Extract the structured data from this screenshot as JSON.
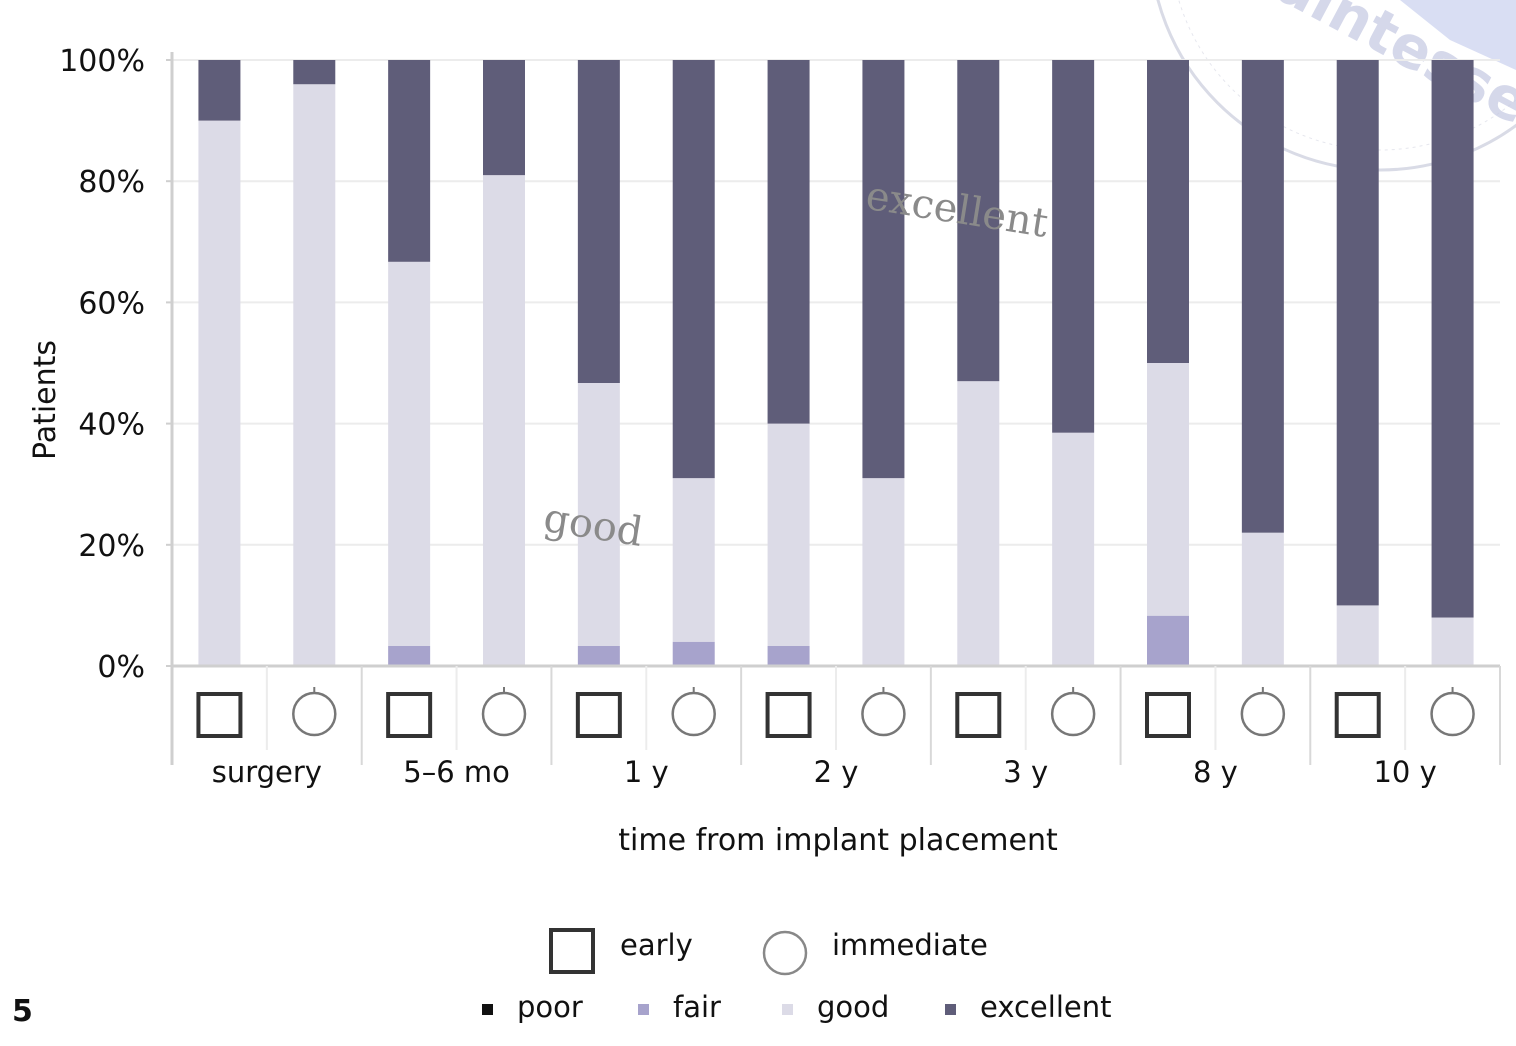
{
  "figure_number": "5",
  "watermark": "Quintessenz",
  "colors": {
    "poor": "#111111",
    "fair": "#a7a3cc",
    "good": "#dcdbe7",
    "excellent": "#5f5d79",
    "axis": "#cfcfcf",
    "grid": "#ececec"
  },
  "icons": {
    "early": "square-icon",
    "immediate": "circle-icon"
  },
  "chart_data": {
    "type": "bar",
    "stacked": true,
    "ylabel": "Patients",
    "xlabel": "time from implant placement",
    "ylim": [
      0,
      100
    ],
    "yticks": [
      "0%",
      "20%",
      "40%",
      "60%",
      "80%",
      "100%"
    ],
    "grid": true,
    "groups": [
      "surgery",
      "5–6 mo",
      "1 y",
      "2 y",
      "3 y",
      "8 y",
      "10 y"
    ],
    "bar_types": [
      "early",
      "immediate"
    ],
    "bars": [
      {
        "group": 0,
        "type": "early",
        "poor": 0,
        "fair": 0,
        "good": 90,
        "excellent": 10
      },
      {
        "group": 0,
        "type": "immediate",
        "poor": 0,
        "fair": 0,
        "good": 96,
        "excellent": 4
      },
      {
        "group": 1,
        "type": "early",
        "poor": 0,
        "fair": 3.3,
        "good": 63.4,
        "excellent": 33.3
      },
      {
        "group": 1,
        "type": "immediate",
        "poor": 0,
        "fair": 0,
        "good": 81,
        "excellent": 19
      },
      {
        "group": 2,
        "type": "early",
        "poor": 0,
        "fair": 3.3,
        "good": 43.4,
        "excellent": 53.3
      },
      {
        "group": 2,
        "type": "immediate",
        "poor": 0,
        "fair": 4,
        "good": 27,
        "excellent": 69
      },
      {
        "group": 3,
        "type": "early",
        "poor": 0,
        "fair": 3.3,
        "good": 36.7,
        "excellent": 60
      },
      {
        "group": 3,
        "type": "immediate",
        "poor": 0,
        "fair": 0,
        "good": 31,
        "excellent": 69
      },
      {
        "group": 4,
        "type": "early",
        "poor": 0,
        "fair": 0,
        "good": 47,
        "excellent": 53
      },
      {
        "group": 4,
        "type": "immediate",
        "poor": 0,
        "fair": 0,
        "good": 38.5,
        "excellent": 61.5
      },
      {
        "group": 5,
        "type": "early",
        "poor": 0,
        "fair": 8.3,
        "good": 41.7,
        "excellent": 50
      },
      {
        "group": 5,
        "type": "immediate",
        "poor": 0,
        "fair": 0,
        "good": 22,
        "excellent": 78
      },
      {
        "group": 6,
        "type": "early",
        "poor": 0,
        "fair": 0,
        "good": 10,
        "excellent": 90
      },
      {
        "group": 6,
        "type": "immediate",
        "poor": 0,
        "fair": 0,
        "good": 8,
        "excellent": 92
      }
    ],
    "annotations": [
      "excellent",
      "good"
    ],
    "legend": {
      "types": [
        "early",
        "immediate"
      ],
      "series": [
        "poor",
        "fair",
        "good",
        "excellent"
      ],
      "placement": "bottom-center"
    }
  }
}
